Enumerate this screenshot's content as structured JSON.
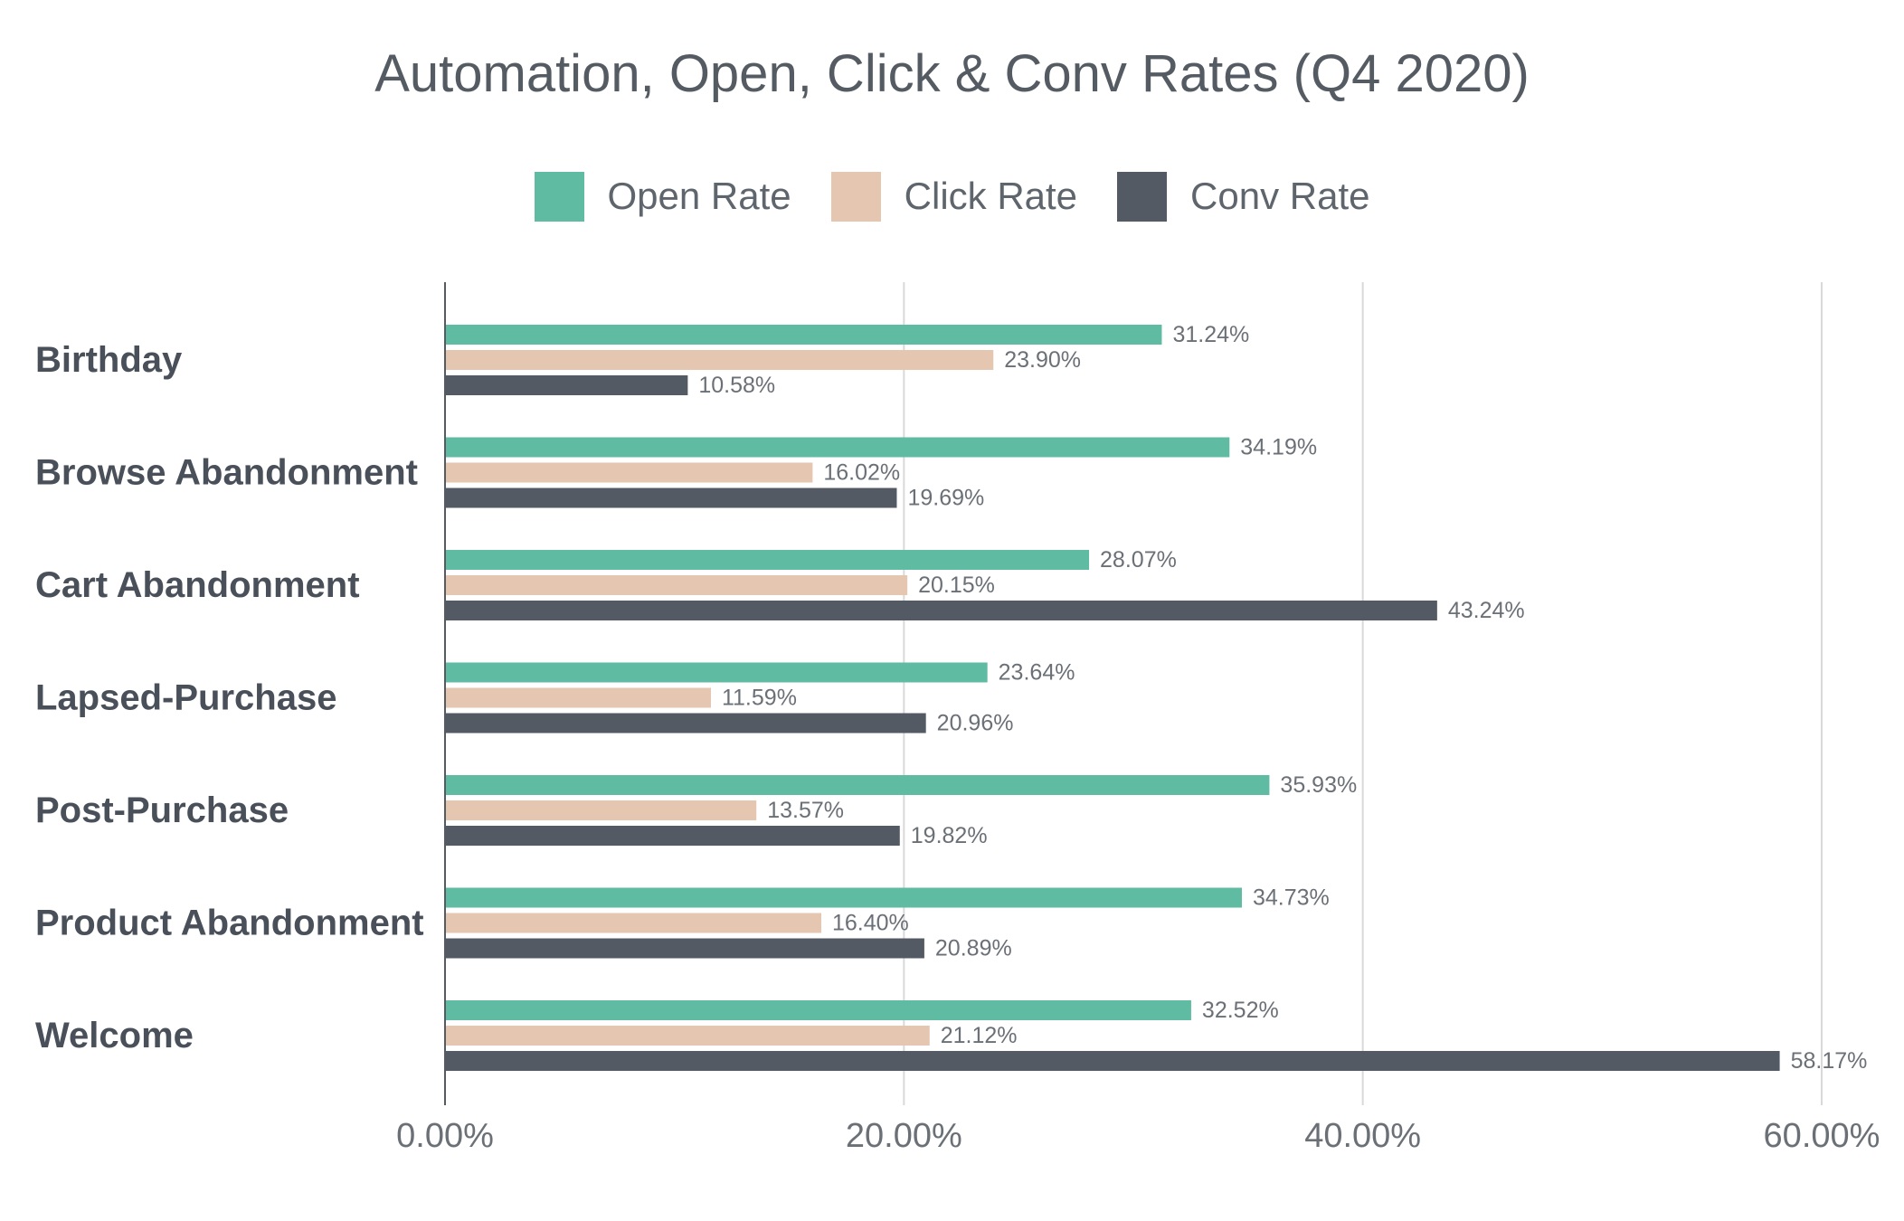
{
  "chart_data": {
    "type": "bar",
    "orientation": "horizontal",
    "title": "Automation, Open, Click & Conv Rates (Q4 2020)",
    "categories": [
      "Birthday",
      "Browse Abandonment",
      "Cart Abandonment",
      "Lapsed-Purchase",
      "Post-Purchase",
      "Product Abandonment",
      "Welcome"
    ],
    "series": [
      {
        "name": "Open Rate",
        "color": "#5fbba1",
        "values": [
          31.24,
          34.19,
          28.07,
          23.64,
          35.93,
          34.73,
          32.52
        ],
        "labels": [
          "31.24%",
          "34.19%",
          "28.07%",
          "23.64%",
          "35.93%",
          "34.73%",
          "32.52%"
        ]
      },
      {
        "name": "Click Rate",
        "color": "#e5c6b0",
        "values": [
          23.9,
          16.02,
          20.15,
          11.59,
          13.57,
          16.4,
          21.12
        ],
        "labels": [
          "23.90%",
          "16.02%",
          "20.15%",
          "11.59%",
          "13.57%",
          "16.40%",
          "21.12%"
        ]
      },
      {
        "name": "Conv Rate",
        "color": "#535a63",
        "values": [
          10.58,
          19.69,
          43.24,
          20.96,
          19.82,
          20.89,
          58.17
        ],
        "labels": [
          "10.58%",
          "19.69%",
          "43.24%",
          "20.96%",
          "19.82%",
          "20.89%",
          "58.17%"
        ]
      }
    ],
    "xlim": [
      0,
      60
    ],
    "xticks": [
      0,
      20,
      40,
      60
    ],
    "xtick_labels": [
      "0.00%",
      "20.00%",
      "40.00%",
      "60.00%"
    ],
    "grid": true,
    "legend_position": "top-center"
  }
}
